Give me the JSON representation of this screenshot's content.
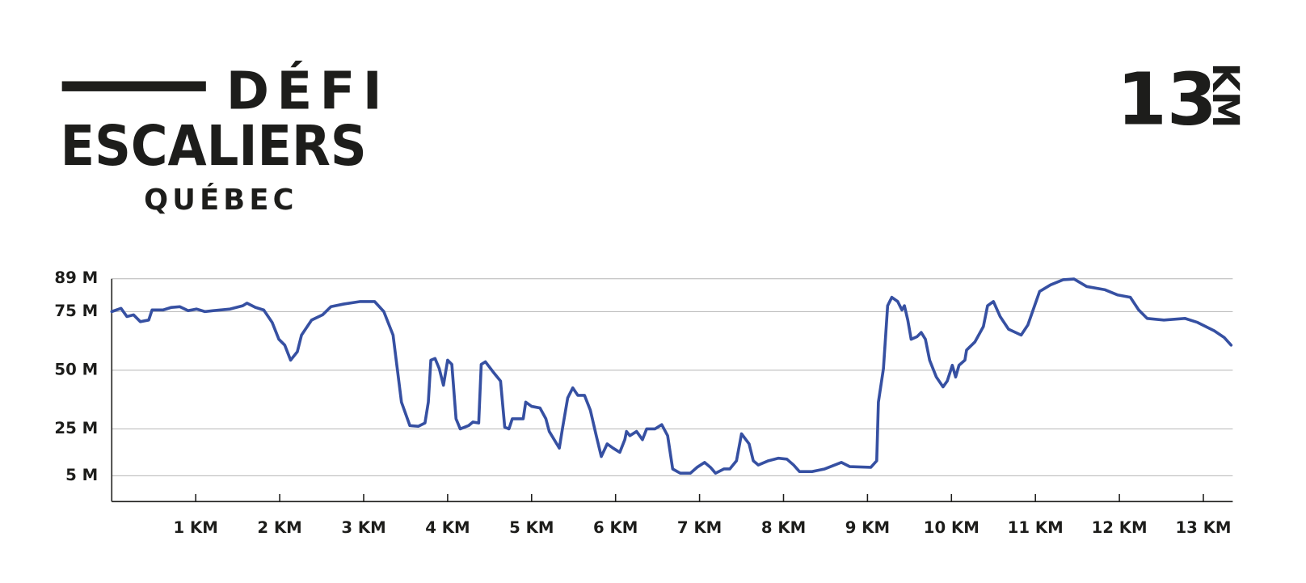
{
  "header": {
    "title_line1": "DÉFI",
    "title_line2": "ESCALIERS",
    "title_line3": "QUÉBEC",
    "distance": "13",
    "distance_unit": "KM"
  },
  "chart_data": {
    "type": "line",
    "xlim": [
      0,
      13.35
    ],
    "ylim": [
      -6,
      89
    ],
    "xticks": [
      {
        "value": 1,
        "label": "1 KM"
      },
      {
        "value": 2,
        "label": "2 KM"
      },
      {
        "value": 3,
        "label": "3 KM"
      },
      {
        "value": 4,
        "label": "4 KM"
      },
      {
        "value": 5,
        "label": "5 KM"
      },
      {
        "value": 6,
        "label": "6 KM"
      },
      {
        "value": 7,
        "label": "7 KM"
      },
      {
        "value": 8,
        "label": "8 KM"
      },
      {
        "value": 9,
        "label": "9 KM"
      },
      {
        "value": 10,
        "label": "10 KM"
      },
      {
        "value": 11,
        "label": "11 KM"
      },
      {
        "value": 12,
        "label": "12 KM"
      },
      {
        "value": 13,
        "label": "13 KM"
      }
    ],
    "yticks": [
      {
        "value": 5,
        "label": "5 M"
      },
      {
        "value": 25,
        "label": "25 M"
      },
      {
        "value": 50,
        "label": "50 M"
      },
      {
        "value": 75,
        "label": "75 M"
      },
      {
        "value": 89,
        "label": "89 M"
      }
    ],
    "grid": true,
    "series": [
      {
        "color": "#3650a2",
        "x": [
          0,
          0.11,
          0.18,
          0.26,
          0.34,
          0.44,
          0.48,
          0.61,
          0.71,
          0.81,
          0.91,
          1.01,
          1.11,
          1.21,
          1.41,
          1.56,
          1.61,
          1.71,
          1.81,
          1.91,
          1.99,
          2.06,
          2.13,
          2.21,
          2.26,
          2.38,
          2.51,
          2.61,
          2.76,
          2.96,
          3.13,
          3.24,
          3.35,
          3.4,
          3.45,
          3.55,
          3.65,
          3.73,
          3.77,
          3.8,
          3.85,
          3.9,
          3.95,
          4.0,
          4.05,
          4.1,
          4.15,
          4.25,
          4.3,
          4.37,
          4.4,
          4.45,
          4.55,
          4.63,
          4.68,
          4.73,
          4.77,
          4.9,
          4.93,
          5.0,
          5.1,
          5.17,
          5.21,
          5.33,
          5.37,
          5.43,
          5.49,
          5.55,
          5.63,
          5.7,
          5.77,
          5.83,
          5.9,
          5.97,
          6.05,
          6.11,
          6.13,
          6.17,
          6.25,
          6.32,
          6.37,
          6.47,
          6.55,
          6.62,
          6.68,
          6.77,
          6.89,
          6.97,
          7.06,
          7.13,
          7.19,
          7.29,
          7.36,
          7.44,
          7.5,
          7.59,
          7.64,
          7.7,
          7.82,
          7.94,
          8.04,
          8.12,
          8.19,
          8.34,
          8.49,
          8.69,
          8.79,
          9.04,
          9.11,
          9.13,
          9.19,
          9.24,
          9.29,
          9.36,
          9.41,
          9.44,
          9.48,
          9.52,
          9.59,
          9.64,
          9.69,
          9.74,
          9.82,
          9.9,
          9.95,
          10.01,
          10.05,
          10.09,
          10.16,
          10.18,
          10.28,
          10.38,
          10.43,
          10.5,
          10.58,
          10.68,
          10.83,
          10.91,
          10.99,
          11.05,
          11.18,
          11.33,
          11.46,
          11.61,
          11.83,
          11.98,
          12.13,
          12.23,
          12.33,
          12.53,
          12.78,
          12.93,
          13.13,
          13.25,
          13.33
        ],
        "values": [
          75,
          76.4,
          72.9,
          73.6,
          70.7,
          71.4,
          75.7,
          75.7,
          76.8,
          77.1,
          75.4,
          76.1,
          75,
          75.4,
          76.1,
          77.5,
          78.6,
          76.8,
          75.7,
          70.4,
          63.2,
          60.7,
          54.3,
          57.9,
          65,
          71.4,
          73.6,
          77.1,
          78.2,
          79.3,
          79.3,
          75,
          65,
          50.7,
          36.4,
          26.4,
          26.1,
          27.5,
          36.4,
          54.3,
          55,
          50.7,
          43.6,
          54.3,
          52.5,
          29.3,
          25,
          26.4,
          27.9,
          27.5,
          52.5,
          53.6,
          48.9,
          45.4,
          25.7,
          25,
          29.3,
          29.3,
          36.4,
          34.6,
          33.9,
          29.3,
          23.9,
          16.8,
          25.7,
          38.2,
          42.5,
          39.3,
          39.3,
          32.9,
          22.1,
          13.2,
          18.6,
          16.8,
          15,
          20.4,
          23.9,
          22.1,
          23.9,
          20.4,
          25,
          25,
          26.8,
          22.1,
          7.9,
          6.1,
          6.1,
          8.6,
          10.7,
          8.6,
          6.1,
          7.9,
          7.9,
          11.4,
          22.9,
          18.6,
          11.4,
          9.6,
          11.4,
          12.5,
          12.1,
          9.6,
          6.8,
          6.8,
          7.9,
          10.7,
          8.9,
          8.6,
          11.4,
          36.4,
          50.7,
          77.5,
          81.1,
          79.3,
          75.7,
          77.5,
          71.4,
          63.2,
          64.3,
          66.1,
          63.2,
          54.3,
          47.1,
          42.9,
          45.4,
          52.1,
          47.1,
          52.1,
          54.3,
          58.6,
          62.1,
          68.6,
          77.5,
          79.3,
          72.9,
          67.5,
          65,
          69.3,
          77.5,
          83.6,
          86.4,
          88.6,
          88.9,
          85.7,
          84.3,
          82.1,
          81.1,
          75.7,
          72.1,
          71.4,
          72.1,
          70.4,
          66.8,
          63.9,
          60.7
        ]
      }
    ]
  }
}
